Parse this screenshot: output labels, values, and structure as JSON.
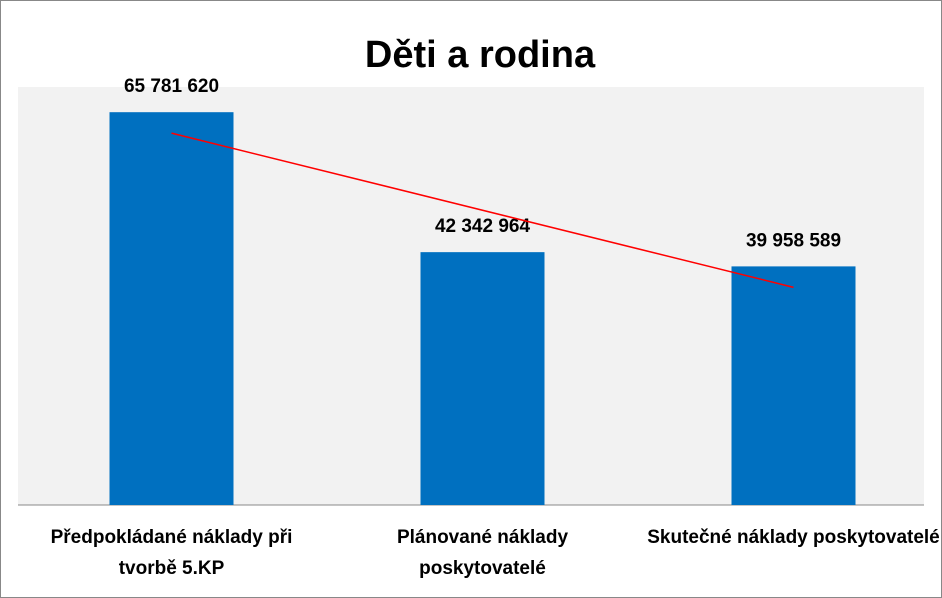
{
  "chart_data": {
    "type": "bar",
    "title": "Děti a rodina",
    "categories": [
      "Předpokládané náklady při tvorbě 5.KP",
      "Plánované náklady poskytovatelé",
      "Skutečné náklady poskytovatelé"
    ],
    "values": [
      65781620,
      42342964,
      39958589
    ],
    "value_labels": [
      "65 781 620",
      "42 342 964",
      "39 958 589"
    ],
    "color": "#0070c0",
    "ylim": [
      0,
      70000000
    ],
    "trendline": "linear",
    "trendline_color": "#ff0000"
  }
}
